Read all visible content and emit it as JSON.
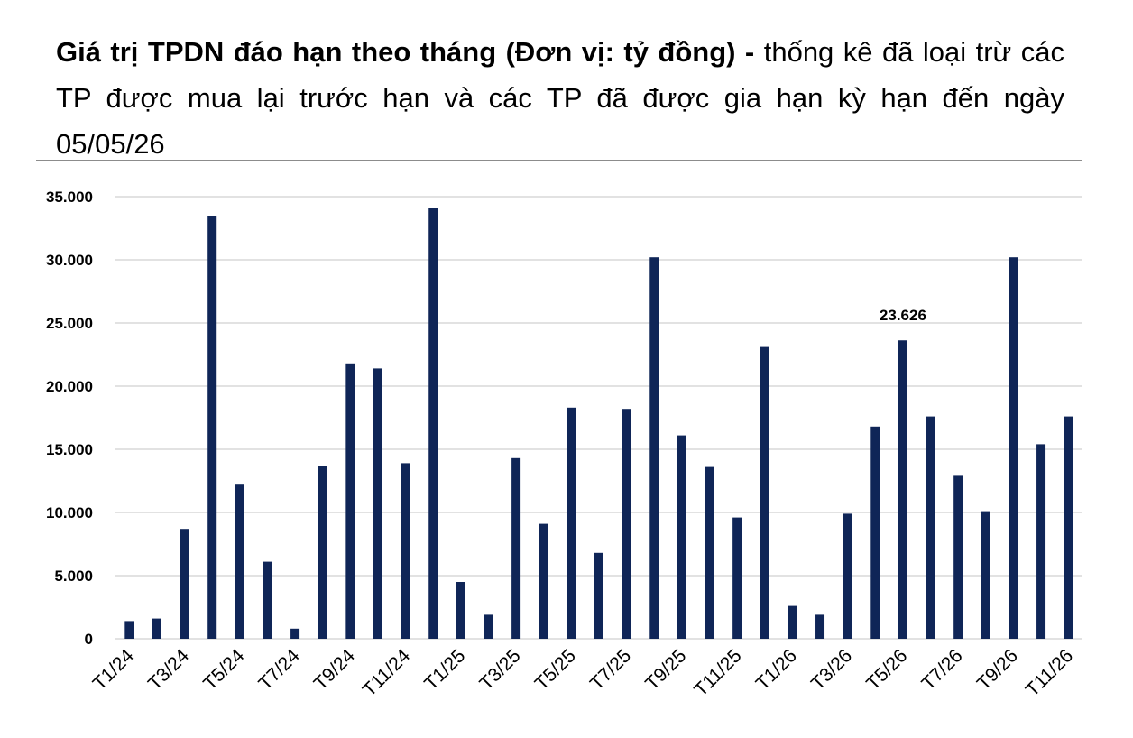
{
  "chart_data": {
    "type": "bar",
    "title": "Giá trị TPDN đáo hạn theo tháng (Đơn vị: tỷ đồng) -",
    "subtitle": "thống kê đã loại trừ các TP được mua lại trước hạn và các TP đã được gia hạn kỳ hạn đến ngày 05/05/26",
    "categories": [
      "T1/24",
      null,
      "T3/24",
      null,
      "T5/24",
      null,
      "T7/24",
      null,
      "T9/24",
      null,
      "T11/24",
      null,
      "T1/25",
      null,
      "T3/25",
      null,
      "T5/25",
      null,
      "T7/25",
      null,
      "T9/25",
      null,
      "T11/25",
      null,
      "T1/26",
      null,
      "T3/26",
      null,
      "T5/26",
      null,
      "T7/26",
      null,
      "T9/26",
      null,
      "T11/26"
    ],
    "values": [
      1400,
      1600,
      8700,
      33500,
      12200,
      6100,
      800,
      13700,
      21800,
      21400,
      13900,
      34100,
      4500,
      1900,
      14300,
      9100,
      18300,
      6800,
      18200,
      30200,
      16100,
      13600,
      9600,
      23100,
      2600,
      1900,
      9900,
      16800,
      23626,
      17600,
      12900,
      10100,
      30200,
      15400,
      17600
    ],
    "value_labels": [
      null,
      null,
      null,
      null,
      null,
      null,
      null,
      null,
      null,
      null,
      null,
      null,
      null,
      null,
      null,
      null,
      null,
      null,
      null,
      null,
      null,
      null,
      null,
      null,
      null,
      null,
      null,
      null,
      "23.626",
      null,
      null,
      null,
      null,
      null,
      null
    ],
    "color": "#0f2557",
    "ylim": [
      0,
      35000
    ],
    "yticks": [
      {
        "value": 0,
        "label": "0"
      },
      {
        "value": 5000,
        "label": "5.000"
      },
      {
        "value": 10000,
        "label": "10.000"
      },
      {
        "value": 15000,
        "label": "15.000"
      },
      {
        "value": 20000,
        "label": "20.000"
      },
      {
        "value": 25000,
        "label": "25.000"
      },
      {
        "value": 30000,
        "label": "30.000"
      },
      {
        "value": 35000,
        "label": "35.000"
      }
    ],
    "grid": true
  }
}
